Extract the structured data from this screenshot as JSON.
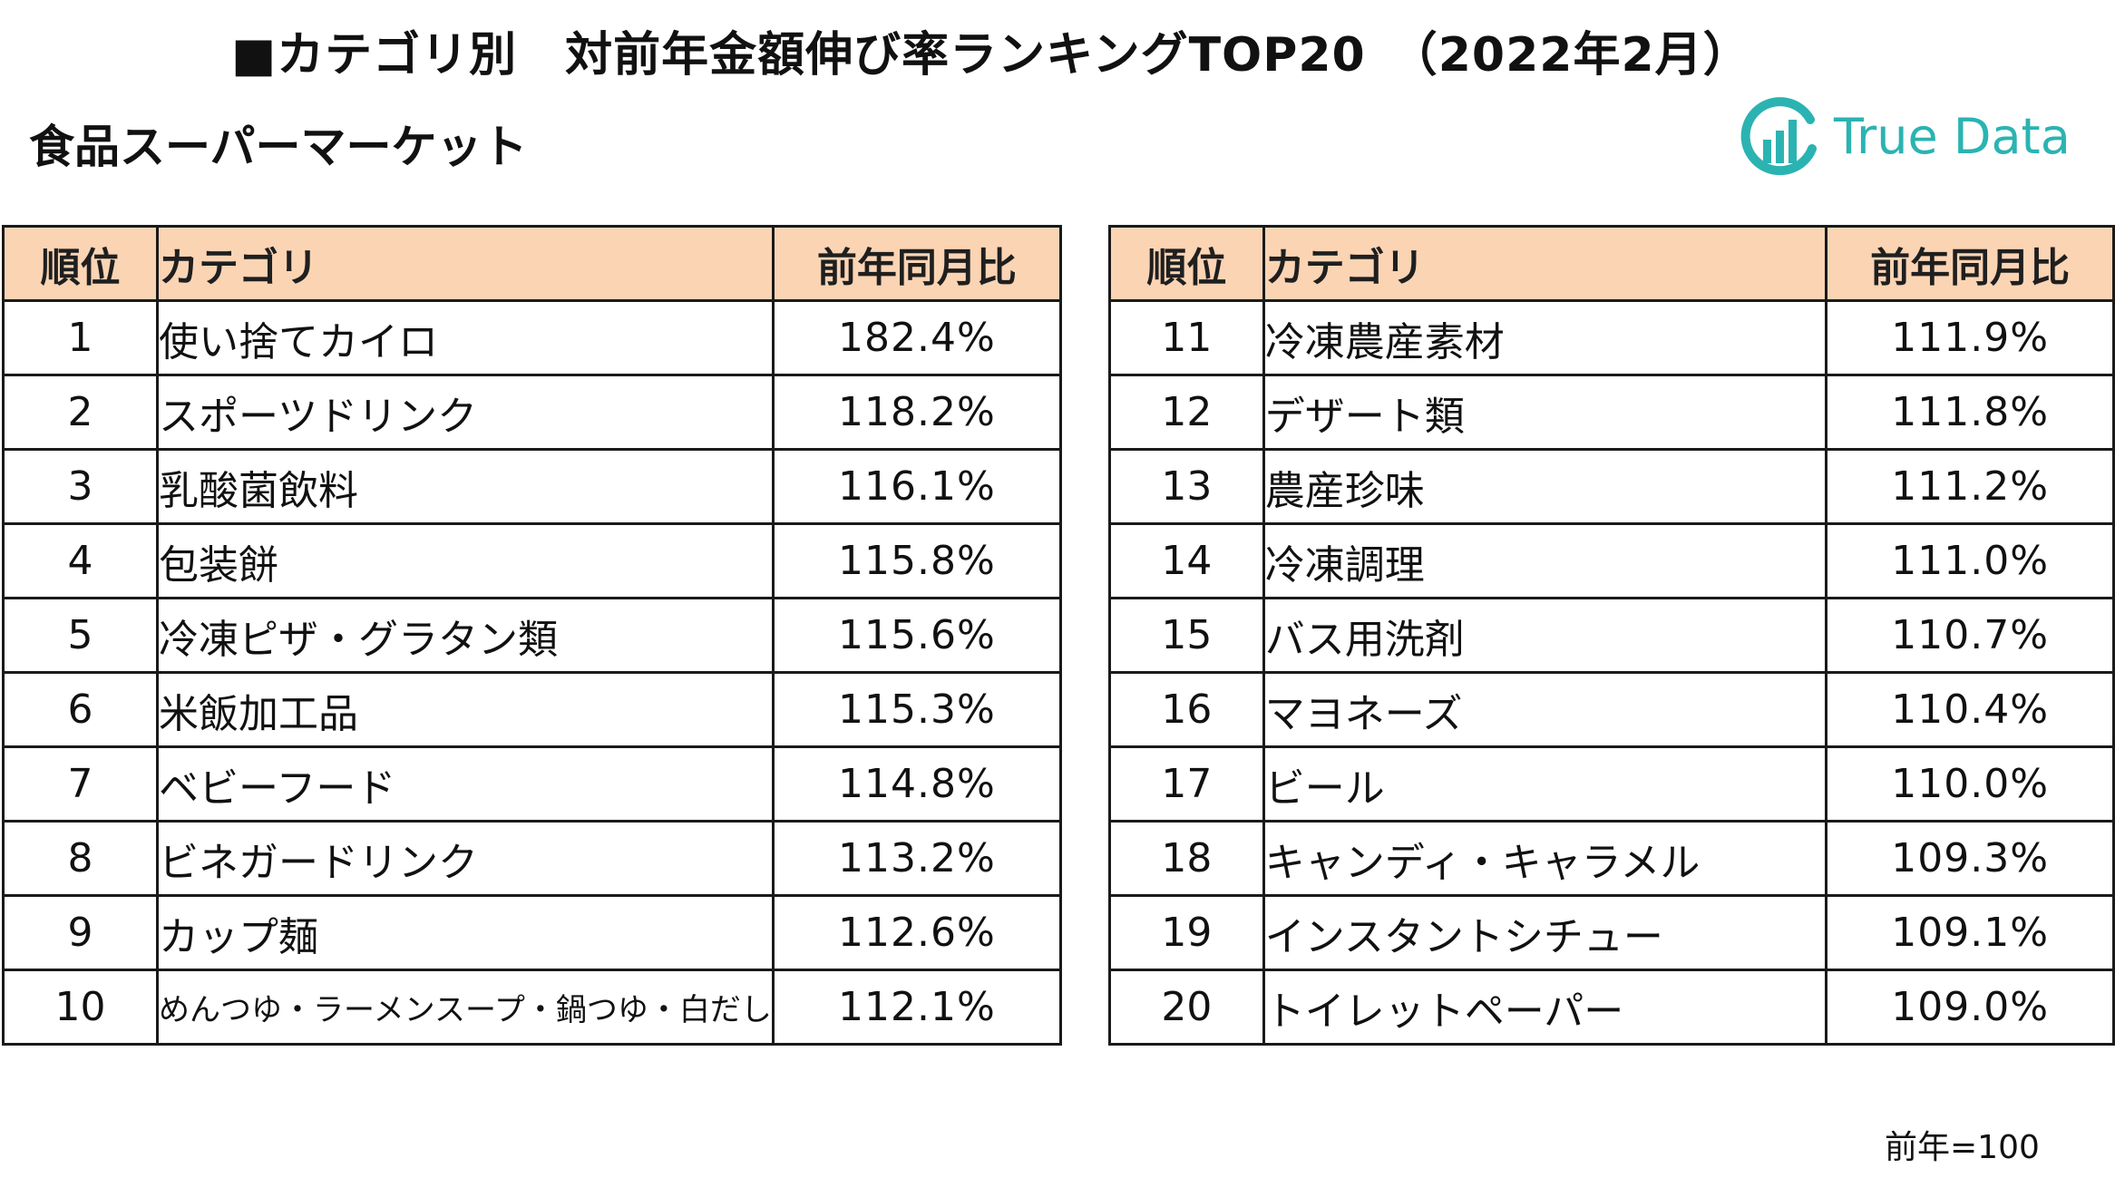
{
  "title": "■カテゴリ別　対前年金額伸び率ランキングTOP20　（2022年2月）",
  "subtitle": "食品スーパーマーケット",
  "logo": {
    "text": "True Data",
    "color": "#2bb3b2"
  },
  "columns": {
    "rank": "順位",
    "category": "カテゴリ",
    "ratio": "前年同月比"
  },
  "header_color": "#fbd4b4",
  "left_rows": [
    {
      "rank": "1",
      "category": "使い捨てカイロ",
      "ratio": "182.4%"
    },
    {
      "rank": "2",
      "category": "スポーツドリンク",
      "ratio": "118.2%"
    },
    {
      "rank": "3",
      "category": "乳酸菌飲料",
      "ratio": "116.1%"
    },
    {
      "rank": "4",
      "category": "包装餅",
      "ratio": "115.8%"
    },
    {
      "rank": "5",
      "category": "冷凍ピザ・グラタン類",
      "ratio": "115.6%"
    },
    {
      "rank": "6",
      "category": "米飯加工品",
      "ratio": "115.3%"
    },
    {
      "rank": "7",
      "category": "ベビーフード",
      "ratio": "114.8%"
    },
    {
      "rank": "8",
      "category": "ビネガードリンク",
      "ratio": "113.2%"
    },
    {
      "rank": "9",
      "category": "カップ麺",
      "ratio": "112.6%"
    },
    {
      "rank": "10",
      "category": "めんつゆ・ラーメンスープ・鍋つゆ・白だし",
      "ratio": "112.1%"
    }
  ],
  "right_rows": [
    {
      "rank": "11",
      "category": "冷凍農産素材",
      "ratio": "111.9%"
    },
    {
      "rank": "12",
      "category": "デザート類",
      "ratio": "111.8%"
    },
    {
      "rank": "13",
      "category": "農産珍味",
      "ratio": "111.2%"
    },
    {
      "rank": "14",
      "category": "冷凍調理",
      "ratio": "111.0%"
    },
    {
      "rank": "15",
      "category": "バス用洗剤",
      "ratio": "110.7%"
    },
    {
      "rank": "16",
      "category": "マヨネーズ",
      "ratio": "110.4%"
    },
    {
      "rank": "17",
      "category": "ビール",
      "ratio": "110.0%"
    },
    {
      "rank": "18",
      "category": "キャンディ・キャラメル",
      "ratio": "109.3%"
    },
    {
      "rank": "19",
      "category": "インスタントシチュー",
      "ratio": "109.1%"
    },
    {
      "rank": "20",
      "category": "トイレットペーパー",
      "ratio": "109.0%"
    }
  ],
  "note": "前年=100"
}
